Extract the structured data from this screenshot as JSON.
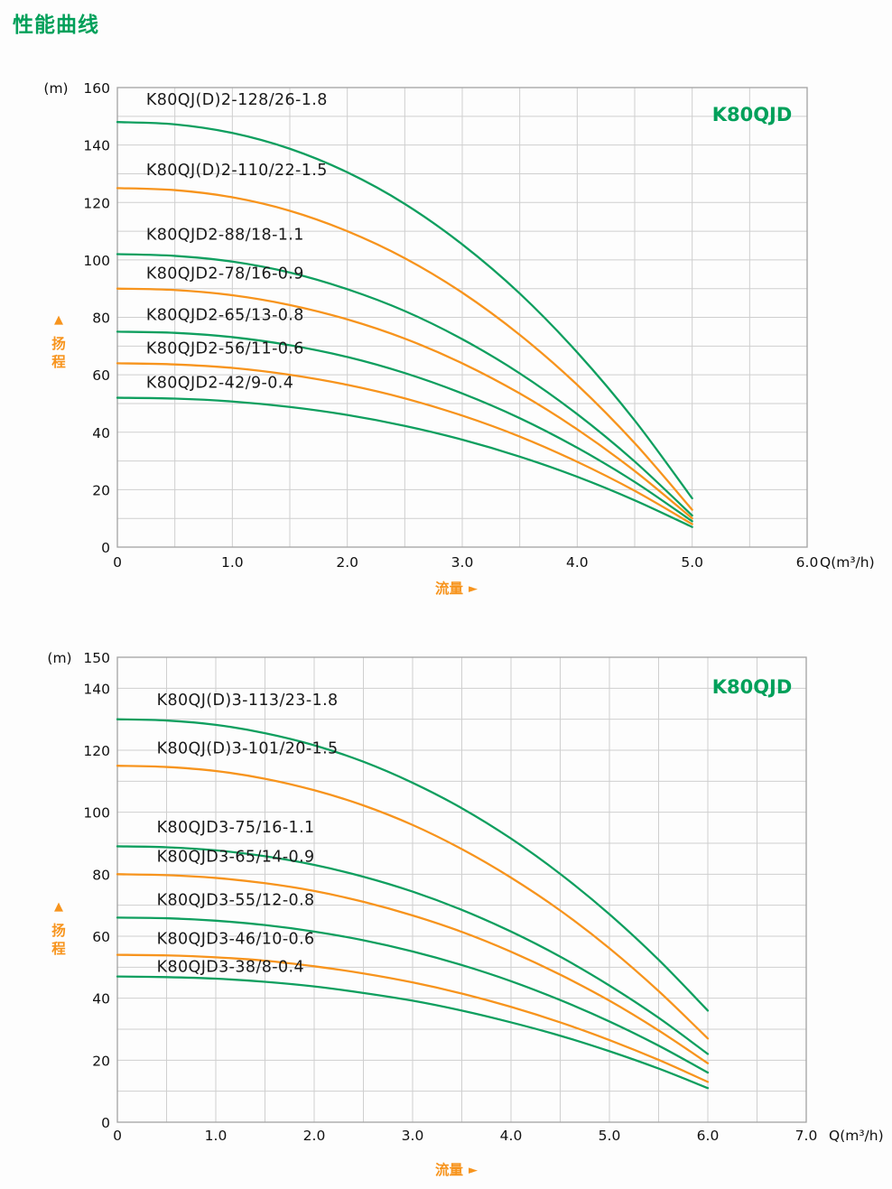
{
  "page": {
    "title": "性能曲线"
  },
  "colors": {
    "title_green": "#00a05a",
    "curve_green": "#0f9f5f",
    "curve_orange": "#f7941d",
    "grid": "#cfcfcf",
    "border": "#a3a3a3",
    "text": "#1a1a1a",
    "tick_text": "#111111",
    "axis_label_orange": "#f7941d"
  },
  "chart_data": [
    {
      "type": "line",
      "title": "K80QJD",
      "xlabel": "流量",
      "ylabel_chars": [
        "扬",
        "程"
      ],
      "x_unit": "Q(m³/h)",
      "y_unit": "(m)",
      "xlim": [
        0,
        6
      ],
      "ylim": [
        0,
        160
      ],
      "grid": true,
      "x_grid_step": 0.5,
      "y_grid_step": 10,
      "x_tick_values": [
        0,
        1,
        2,
        3,
        4,
        5,
        6
      ],
      "x_tick_labels": [
        "0",
        "1.0",
        "2.0",
        "3.0",
        "4.0",
        "5.0",
        "6.0"
      ],
      "y_tick_values": [
        0,
        20,
        40,
        60,
        80,
        100,
        120,
        140,
        160
      ],
      "y_tick_labels": [
        "0",
        "20",
        "40",
        "60",
        "80",
        "100",
        "120",
        "140",
        "160"
      ],
      "series": [
        {
          "name": "K80QJ(D)2-128/26-1.8",
          "color": "#0f9f5f",
          "x": [
            0,
            0.5,
            1,
            1.5,
            2,
            2.5,
            3,
            3.5,
            4,
            4.5,
            5
          ],
          "y": [
            148,
            147.2,
            144.2,
            138.7,
            130.5,
            119.5,
            105.4,
            88.3,
            67.8,
            44.1,
            17
          ],
          "label_pos": [
            0.25,
            154
          ]
        },
        {
          "name": "K80QJ(D)2-110/22-1.5",
          "color": "#f7941d",
          "x": [
            0,
            0.5,
            1,
            1.5,
            2,
            2.5,
            3,
            3.5,
            4,
            4.5,
            5
          ],
          "y": [
            125,
            124.3,
            121.8,
            117.1,
            110,
            100.6,
            88.6,
            73.9,
            56.5,
            36.2,
            13
          ],
          "label_pos": [
            0.25,
            129.5
          ]
        },
        {
          "name": "K80QJD2-88/18-1.1",
          "color": "#0f9f5f",
          "x": [
            0,
            0.5,
            1,
            1.5,
            2,
            2.5,
            3,
            3.5,
            4,
            4.5,
            5
          ],
          "y": [
            102,
            101.4,
            99.4,
            95.6,
            89.8,
            82.2,
            72.4,
            60.5,
            46.3,
            29.8,
            11
          ],
          "label_pos": [
            0.25,
            107
          ]
        },
        {
          "name": "K80QJD2-78/16-0.9",
          "color": "#f7941d",
          "x": [
            0,
            0.5,
            1,
            1.5,
            2,
            2.5,
            3,
            3.5,
            4,
            4.5,
            5
          ],
          "y": [
            90,
            89.5,
            87.7,
            84.3,
            79.3,
            72.6,
            64,
            53.5,
            41,
            26.5,
            10
          ],
          "label_pos": [
            0.25,
            93.5
          ]
        },
        {
          "name": "K80QJD2-65/13-0.8",
          "color": "#0f9f5f",
          "x": [
            0,
            0.5,
            1,
            1.5,
            2,
            2.5,
            3,
            3.5,
            4,
            4.5,
            5
          ],
          "y": [
            75,
            74.6,
            73.1,
            70.3,
            66.2,
            60.6,
            53.5,
            44.9,
            34.6,
            22.7,
            9
          ],
          "label_pos": [
            0.25,
            79
          ]
        },
        {
          "name": "K80QJD2-56/11-0.6",
          "color": "#f7941d",
          "x": [
            0,
            0.5,
            1,
            1.5,
            2,
            2.5,
            3,
            3.5,
            4,
            4.5,
            5
          ],
          "y": [
            64,
            63.6,
            62.4,
            60,
            56.5,
            51.8,
            45.8,
            38.5,
            29.7,
            19.6,
            8
          ],
          "label_pos": [
            0.25,
            67.5
          ]
        },
        {
          "name": "K80QJD2-42/9-0.4",
          "color": "#0f9f5f",
          "x": [
            0,
            0.5,
            1,
            1.5,
            2,
            2.5,
            3,
            3.5,
            4,
            4.5,
            5
          ],
          "y": [
            52,
            51.7,
            50.7,
            48.8,
            46,
            42.2,
            37.4,
            31.5,
            24.5,
            16.3,
            7
          ],
          "label_pos": [
            0.25,
            55.5
          ]
        }
      ]
    },
    {
      "type": "line",
      "title": "K80QJD",
      "xlabel": "流量",
      "ylabel_chars": [
        "扬",
        "程"
      ],
      "x_unit": "Q(m³/h)",
      "y_unit": "(m)",
      "xlim": [
        0,
        7
      ],
      "ylim": [
        0,
        150
      ],
      "grid": true,
      "x_grid_step": 0.5,
      "y_grid_step": 10,
      "x_tick_values": [
        0,
        1,
        2,
        3,
        4,
        5,
        6,
        7
      ],
      "x_tick_labels": [
        "0",
        "1.0",
        "2.0",
        "3.0",
        "4.0",
        "5.0",
        "6.0",
        "7.0"
      ],
      "y_tick_values": [
        0,
        20,
        40,
        60,
        80,
        100,
        120,
        140,
        150
      ],
      "y_tick_labels": [
        "0",
        "20",
        "40",
        "60",
        "80",
        "100",
        "120",
        "140",
        "150"
      ],
      "series": [
        {
          "name": "K80QJ(D)3-113/23-1.8",
          "color": "#0f9f5f",
          "x": [
            0,
            0.5,
            1,
            1.5,
            2,
            2.5,
            3,
            3.5,
            4,
            4.5,
            5,
            5.5,
            6
          ],
          "y": [
            130,
            129.6,
            128.2,
            125.5,
            121.6,
            116.3,
            109.5,
            101.3,
            91.5,
            80.1,
            67.1,
            52.4,
            36
          ],
          "label_pos": [
            0.4,
            134.5
          ]
        },
        {
          "name": "K80QJ(D)3-101/20-1.5",
          "color": "#f7941d",
          "x": [
            0,
            0.5,
            1,
            1.5,
            2,
            2.5,
            3,
            3.5,
            4,
            4.5,
            5,
            5.5,
            6
          ],
          "y": [
            115,
            114.6,
            113.3,
            110.8,
            107.1,
            102.2,
            95.9,
            88.1,
            78.9,
            68.3,
            56.1,
            42.3,
            27
          ],
          "label_pos": [
            0.4,
            119
          ]
        },
        {
          "name": "K80QJD3-75/16-1.1",
          "color": "#0f9f5f",
          "x": [
            0,
            0.5,
            1,
            1.5,
            2,
            2.5,
            3,
            3.5,
            4,
            4.5,
            5,
            5.5,
            6
          ],
          "y": [
            89,
            88.7,
            87.7,
            85.8,
            83,
            79.2,
            74.4,
            68.5,
            61.5,
            53.4,
            44.1,
            33.7,
            22
          ],
          "label_pos": [
            0.4,
            93.5
          ]
        },
        {
          "name": "K80QJD3-65/14-0.9",
          "color": "#f7941d",
          "x": [
            0,
            0.5,
            1,
            1.5,
            2,
            2.5,
            3,
            3.5,
            4,
            4.5,
            5,
            5.5,
            6
          ],
          "y": [
            80,
            79.7,
            78.8,
            77.1,
            74.6,
            71.1,
            66.7,
            61.4,
            55,
            47.6,
            39.2,
            29.6,
            19
          ],
          "label_pos": [
            0.4,
            84
          ]
        },
        {
          "name": "K80QJD3-55/12-0.8",
          "color": "#0f9f5f",
          "x": [
            0,
            0.5,
            1,
            1.5,
            2,
            2.5,
            3,
            3.5,
            4,
            4.5,
            5,
            5.5,
            6
          ],
          "y": [
            66,
            65.8,
            65,
            63.6,
            61.5,
            58.7,
            55.1,
            50.7,
            45.5,
            39.4,
            32.5,
            24.7,
            16
          ],
          "label_pos": [
            0.4,
            70
          ]
        },
        {
          "name": "K80QJD3-46/10-0.6",
          "color": "#f7941d",
          "x": [
            0,
            0.5,
            1,
            1.5,
            2,
            2.5,
            3,
            3.5,
            4,
            4.5,
            5,
            5.5,
            6
          ],
          "y": [
            54,
            53.8,
            53.2,
            52.1,
            50.3,
            48,
            45.1,
            41.5,
            37.2,
            32.2,
            26.5,
            20.1,
            13
          ],
          "label_pos": [
            0.4,
            57.5
          ]
        },
        {
          "name": "K80QJD3-38/8-0.4",
          "color": "#0f9f5f",
          "x": [
            0,
            0.5,
            1,
            1.5,
            2,
            2.5,
            3,
            3.5,
            4,
            4.5,
            5,
            5.5,
            6
          ],
          "y": [
            47,
            46.8,
            46.3,
            45.3,
            43.8,
            41.7,
            39.2,
            36,
            32.2,
            27.9,
            22.9,
            17.3,
            11
          ],
          "label_pos": [
            0.4,
            48.5
          ]
        }
      ]
    }
  ]
}
